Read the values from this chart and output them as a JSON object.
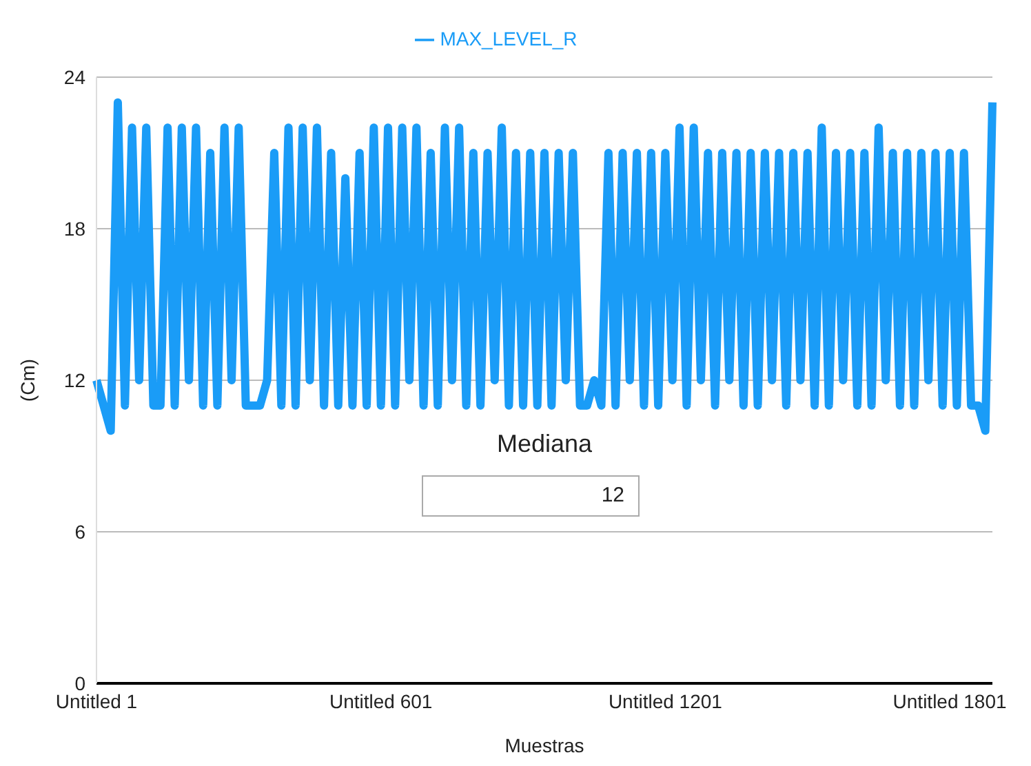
{
  "chart_data": {
    "type": "line",
    "xlabel": "Muestras",
    "ylabel": "(Cm)",
    "ylim": [
      0,
      24
    ],
    "yticks": [
      0,
      6,
      12,
      18,
      24
    ],
    "grid": "y",
    "legend": "top",
    "marker": "none",
    "line_style": "solid",
    "annotations": [
      "Mediana",
      "12"
    ],
    "categories": [
      "Untitled 1",
      null,
      null,
      null,
      null,
      null,
      null,
      null,
      null,
      null,
      null,
      null,
      null,
      null,
      null,
      null,
      null,
      null,
      null,
      null,
      null,
      null,
      null,
      null,
      null,
      null,
      null,
      null,
      null,
      null,
      null,
      null,
      null,
      null,
      null,
      null,
      null,
      null,
      null,
      null,
      "Untitled 601",
      null,
      null,
      null,
      null,
      null,
      null,
      null,
      null,
      null,
      null,
      null,
      null,
      null,
      null,
      null,
      null,
      null,
      null,
      null,
      null,
      null,
      null,
      null,
      null,
      null,
      null,
      null,
      null,
      null,
      null,
      null,
      null,
      null,
      null,
      null,
      null,
      null,
      null,
      null,
      "Untitled 1201",
      null,
      null,
      null,
      null,
      null,
      null,
      null,
      null,
      null,
      null,
      null,
      null,
      null,
      null,
      null,
      null,
      null,
      null,
      null,
      null,
      null,
      null,
      null,
      null,
      null,
      null,
      null,
      null,
      null,
      null,
      null,
      null,
      null,
      null,
      null,
      null,
      null,
      null,
      null,
      "Untitled 1801",
      null,
      null,
      null,
      null,
      null,
      null
    ],
    "series": [
      {
        "name": "MAX_LEVEL_R",
        "color": "#1a9cf7",
        "values": [
          12,
          11,
          10,
          23,
          11,
          22,
          12,
          22,
          11,
          11,
          22,
          11,
          22,
          12,
          22,
          11,
          21,
          11,
          22,
          12,
          22,
          11,
          11,
          11,
          12,
          21,
          11,
          22,
          11,
          22,
          12,
          22,
          11,
          21,
          11,
          20,
          11,
          21,
          11,
          22,
          11,
          22,
          11,
          22,
          12,
          22,
          11,
          21,
          11,
          22,
          12,
          22,
          11,
          21,
          11,
          21,
          12,
          22,
          11,
          21,
          11,
          21,
          11,
          21,
          11,
          21,
          12,
          21,
          11,
          11,
          12,
          11,
          21,
          11,
          21,
          12,
          21,
          11,
          21,
          11,
          21,
          12,
          22,
          11,
          22,
          12,
          21,
          11,
          21,
          12,
          21,
          11,
          21,
          11,
          21,
          12,
          21,
          11,
          21,
          12,
          21,
          11,
          22,
          11,
          21,
          12,
          21,
          11,
          21,
          11,
          22,
          12,
          21,
          11,
          21,
          11,
          21,
          12,
          21,
          11,
          21,
          11,
          21,
          11,
          11,
          10,
          23
        ]
      }
    ]
  }
}
